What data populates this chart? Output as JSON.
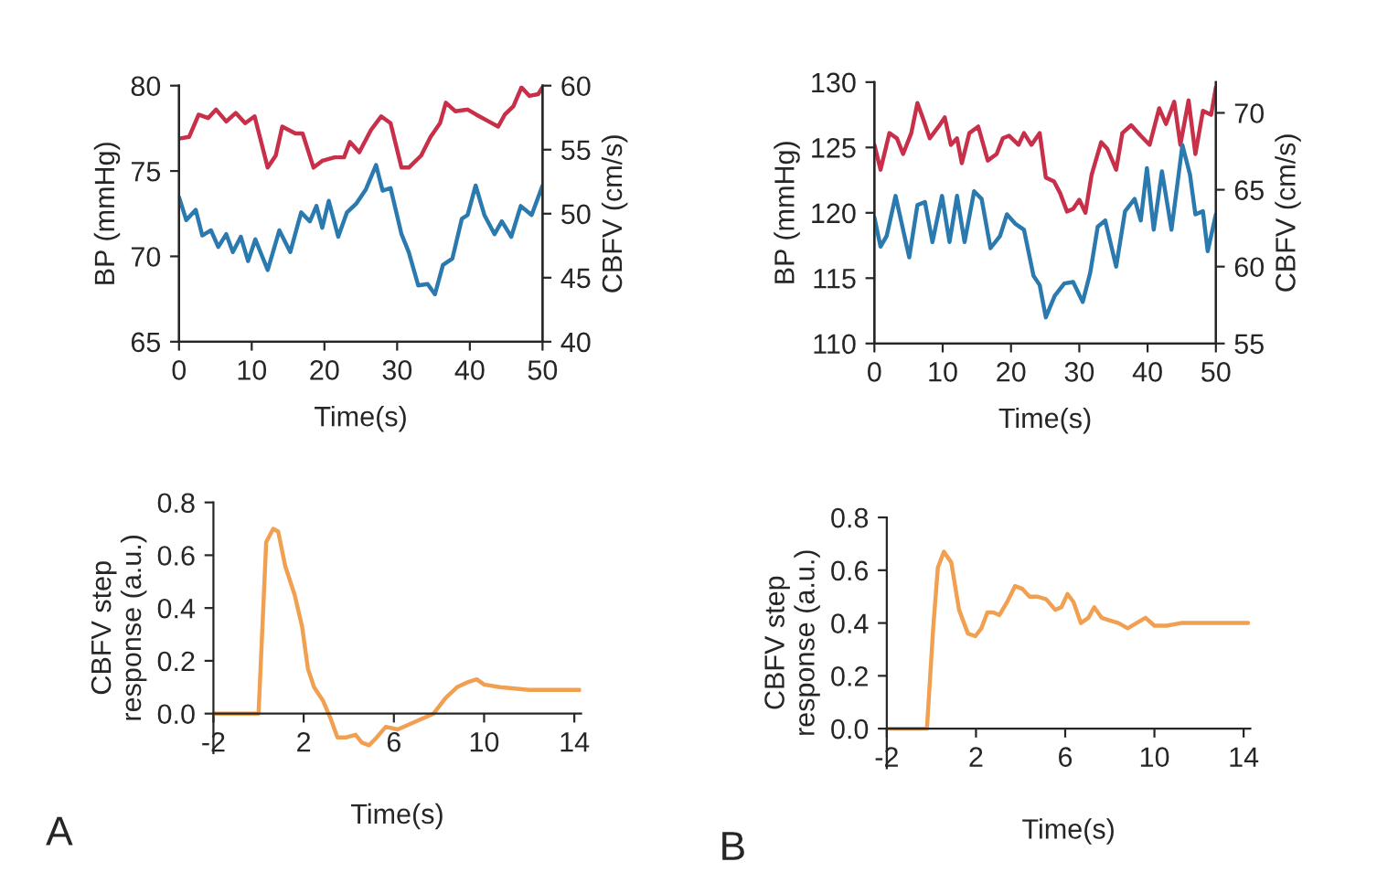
{
  "chart_data": [
    {
      "type": "line",
      "xlabel": "Time(s)",
      "ylabel": "BP (mmHg)",
      "y2label": "CBFV (cm/s)",
      "xlim": [
        0,
        50
      ],
      "xticks": [
        0,
        10,
        20,
        30,
        40,
        50
      ],
      "ylim": [
        65,
        80
      ],
      "yticks": [
        65,
        70,
        75,
        80
      ],
      "y2lim": [
        40,
        60
      ],
      "y2ticks": [
        40,
        45,
        50,
        55,
        60
      ],
      "series": [
        {
          "color": "#c8304a",
          "x": [
            0,
            1.4,
            2.7,
            4,
            5.1,
            6.5,
            7.8,
            9.1,
            10.4,
            11,
            12.2,
            13.3,
            14.2,
            16,
            17,
            18.5,
            19.7,
            21.4,
            22.7,
            23.5,
            24.8,
            26.4,
            27.8,
            29.1,
            30.6,
            31.6,
            33.3,
            34.6,
            35.9,
            36.7,
            38,
            39.7,
            40.9,
            42.6,
            43.9,
            44.8,
            46,
            47.1,
            48.2,
            49.4,
            50
          ],
          "values": [
            76.9,
            77.0,
            78.3,
            78.1,
            78.6,
            77.9,
            78.4,
            77.8,
            78.2,
            77.2,
            75.2,
            75.9,
            77.6,
            77.2,
            77.2,
            75.2,
            75.6,
            75.8,
            75.8,
            76.7,
            76.1,
            77.4,
            78.2,
            77.8,
            75.2,
            75.2,
            75.9,
            77.0,
            77.8,
            79.0,
            78.5,
            78.6,
            78.3,
            77.9,
            77.6,
            78.3,
            78.8,
            79.9,
            79.4,
            79.5,
            79.9
          ]
        },
        {
          "color": "#2a7ab0",
          "axis": "y2",
          "x": [
            0,
            1,
            2.3,
            3.2,
            4.4,
            5.4,
            6.5,
            7.4,
            8.5,
            9.5,
            10.5,
            11.2,
            12.2,
            13.8,
            15.3,
            16.8,
            18,
            18.9,
            19.7,
            20.6,
            21.9,
            23.1,
            24.4,
            25.7,
            27.1,
            28,
            29.1,
            30.6,
            31.6,
            32.9,
            34.2,
            35.2,
            36.3,
            37.6,
            38.9,
            39.7,
            40.8,
            42,
            43.4,
            44.4,
            45.7,
            47,
            48.5,
            50
          ],
          "values": [
            51.3,
            49.5,
            50.3,
            48.3,
            48.7,
            47.4,
            48.4,
            47.0,
            48.2,
            46.3,
            48.0,
            47.0,
            45.6,
            48.7,
            47.0,
            50.1,
            49.4,
            50.6,
            48.9,
            51.0,
            48.2,
            50.1,
            50.8,
            51.9,
            53.8,
            51.8,
            52.0,
            48.4,
            47.0,
            44.4,
            44.5,
            43.7,
            46.0,
            46.5,
            49.6,
            49.9,
            52.2,
            49.9,
            48.4,
            49.4,
            48.2,
            50.6,
            49.9,
            52.2
          ]
        }
      ]
    },
    {
      "type": "line",
      "xlabel": "Time(s)",
      "ylabel": "BP (mmHg)",
      "y2label": "CBFV (cm/s)",
      "xlim": [
        0,
        50
      ],
      "xticks": [
        0,
        10,
        20,
        30,
        40,
        50
      ],
      "ylim": [
        110,
        130
      ],
      "yticks": [
        110,
        115,
        120,
        125,
        130
      ],
      "y2lim": [
        55,
        72
      ],
      "y2ticks": [
        55,
        60,
        65,
        70
      ],
      "series": [
        {
          "color": "#c8304a",
          "x": [
            0,
            0.9,
            2.2,
            3.3,
            4.2,
            5.4,
            6.3,
            7.2,
            8.1,
            9.4,
            10.3,
            11.2,
            12.1,
            12.8,
            13.9,
            15.2,
            16.6,
            17.9,
            18.8,
            19.7,
            21.1,
            21.9,
            23,
            24.2,
            25.1,
            26.3,
            27.2,
            28.2,
            29.1,
            30,
            30.9,
            31.8,
            33.2,
            34.1,
            35.4,
            36.3,
            37.6,
            39,
            40.3,
            41.7,
            42.7,
            43.9,
            44.8,
            46,
            47,
            48.1,
            49.3,
            50
          ],
          "values": [
            125.2,
            123.3,
            126.1,
            125.7,
            124.5,
            126.1,
            128.4,
            127.1,
            125.7,
            126.6,
            127.3,
            125.2,
            125.7,
            123.8,
            126.1,
            126.6,
            124.0,
            124.5,
            125.7,
            125.9,
            125.2,
            126.1,
            125.2,
            126.1,
            122.7,
            122.4,
            121.5,
            120.1,
            120.3,
            121.0,
            120.0,
            122.9,
            125.4,
            124.9,
            123.3,
            126.1,
            126.7,
            125.9,
            125.2,
            128.0,
            126.8,
            128.5,
            125.2,
            128.6,
            124.5,
            127.8,
            127.5,
            129.6
          ]
        },
        {
          "color": "#2a7ab0",
          "axis": "y2",
          "x": [
            0,
            0.9,
            1.8,
            3.1,
            4,
            5.1,
            6.3,
            7.4,
            8.5,
            9.9,
            11,
            12.1,
            13.2,
            14.6,
            15.7,
            17,
            18.4,
            19.4,
            20.6,
            21.9,
            23.3,
            24.2,
            25.1,
            26.4,
            27.8,
            29.1,
            30.5,
            31.6,
            32.7,
            33.8,
            35.4,
            36.7,
            38.1,
            39,
            39.9,
            40.9,
            42.1,
            43.5,
            45.1,
            46.2,
            47,
            48.1,
            48.8,
            50
          ],
          "values": [
            63.2,
            61.3,
            62.0,
            64.6,
            62.8,
            60.6,
            64.0,
            64.2,
            61.6,
            64.6,
            61.6,
            64.6,
            61.6,
            64.9,
            64.4,
            61.2,
            62.0,
            63.4,
            62.8,
            62.4,
            59.4,
            58.8,
            56.7,
            58.1,
            58.9,
            59.0,
            57.7,
            59.6,
            62.6,
            63.0,
            60.0,
            63.6,
            64.4,
            63.0,
            66.4,
            62.4,
            66.2,
            62.4,
            67.9,
            66.0,
            63.4,
            63.6,
            61.0,
            63.4
          ]
        }
      ]
    },
    {
      "type": "line",
      "xlabel": "Time(s)",
      "ylabel": "CBFV step\nresponse (a.u.)",
      "xlim": [
        -2,
        14.3
      ],
      "xticks": [
        -2,
        2,
        6,
        10,
        14
      ],
      "ylim": [
        -0.15,
        0.8
      ],
      "yticks": [
        {
          "value": 0,
          "label": "0.0"
        },
        0.2,
        0.4,
        0.6,
        0.8
      ],
      "annotations": [
        "A"
      ],
      "series": [
        {
          "color": "#f0a050",
          "x": [
            -2,
            0,
            0.34,
            0.65,
            0.87,
            1.18,
            1.6,
            1.93,
            2.19,
            2.46,
            2.85,
            3.2,
            3.5,
            3.9,
            4.3,
            4.58,
            4.9,
            5.24,
            5.64,
            6.17,
            6.7,
            7.23,
            7.76,
            8.3,
            8.8,
            9.3,
            9.67,
            10,
            10.7,
            12,
            14.25
          ],
          "values": [
            0,
            0,
            0.65,
            0.7,
            0.69,
            0.56,
            0.45,
            0.33,
            0.17,
            0.1,
            0.05,
            -0.02,
            -0.09,
            -0.09,
            -0.08,
            -0.11,
            -0.12,
            -0.09,
            -0.05,
            -0.06,
            -0.04,
            -0.02,
            0,
            0.06,
            0.1,
            0.12,
            0.13,
            0.11,
            0.1,
            0.09,
            0.09
          ]
        }
      ]
    },
    {
      "type": "line",
      "xlabel": "Time(s)",
      "ylabel": "CBFV step\nresponse (a.u.)",
      "xlim": [
        -2,
        14.3
      ],
      "xticks": [
        -2,
        2,
        6,
        10,
        14
      ],
      "ylim": [
        -0.15,
        0.8
      ],
      "yticks": [
        {
          "value": 0,
          "label": "0.0"
        },
        0.2,
        0.4,
        0.6,
        0.8
      ],
      "annotations": [
        "B"
      ],
      "series": [
        {
          "color": "#f0a050",
          "x": [
            -2,
            -0.2,
            0.08,
            0.29,
            0.56,
            0.89,
            1.24,
            1.64,
            1.97,
            2.24,
            2.51,
            2.78,
            3.05,
            3.4,
            3.75,
            4.07,
            4.4,
            4.75,
            5.15,
            5.55,
            5.83,
            6.1,
            6.37,
            6.7,
            7.04,
            7.3,
            7.63,
            7.98,
            8.39,
            8.8,
            9.2,
            9.6,
            10,
            10.55,
            11.2,
            14.2
          ],
          "values": [
            0,
            0,
            0.38,
            0.61,
            0.67,
            0.63,
            0.45,
            0.36,
            0.35,
            0.38,
            0.44,
            0.44,
            0.43,
            0.48,
            0.54,
            0.53,
            0.5,
            0.5,
            0.49,
            0.45,
            0.46,
            0.51,
            0.48,
            0.4,
            0.42,
            0.46,
            0.42,
            0.41,
            0.4,
            0.38,
            0.4,
            0.42,
            0.39,
            0.39,
            0.4,
            0.4
          ]
        }
      ]
    }
  ]
}
